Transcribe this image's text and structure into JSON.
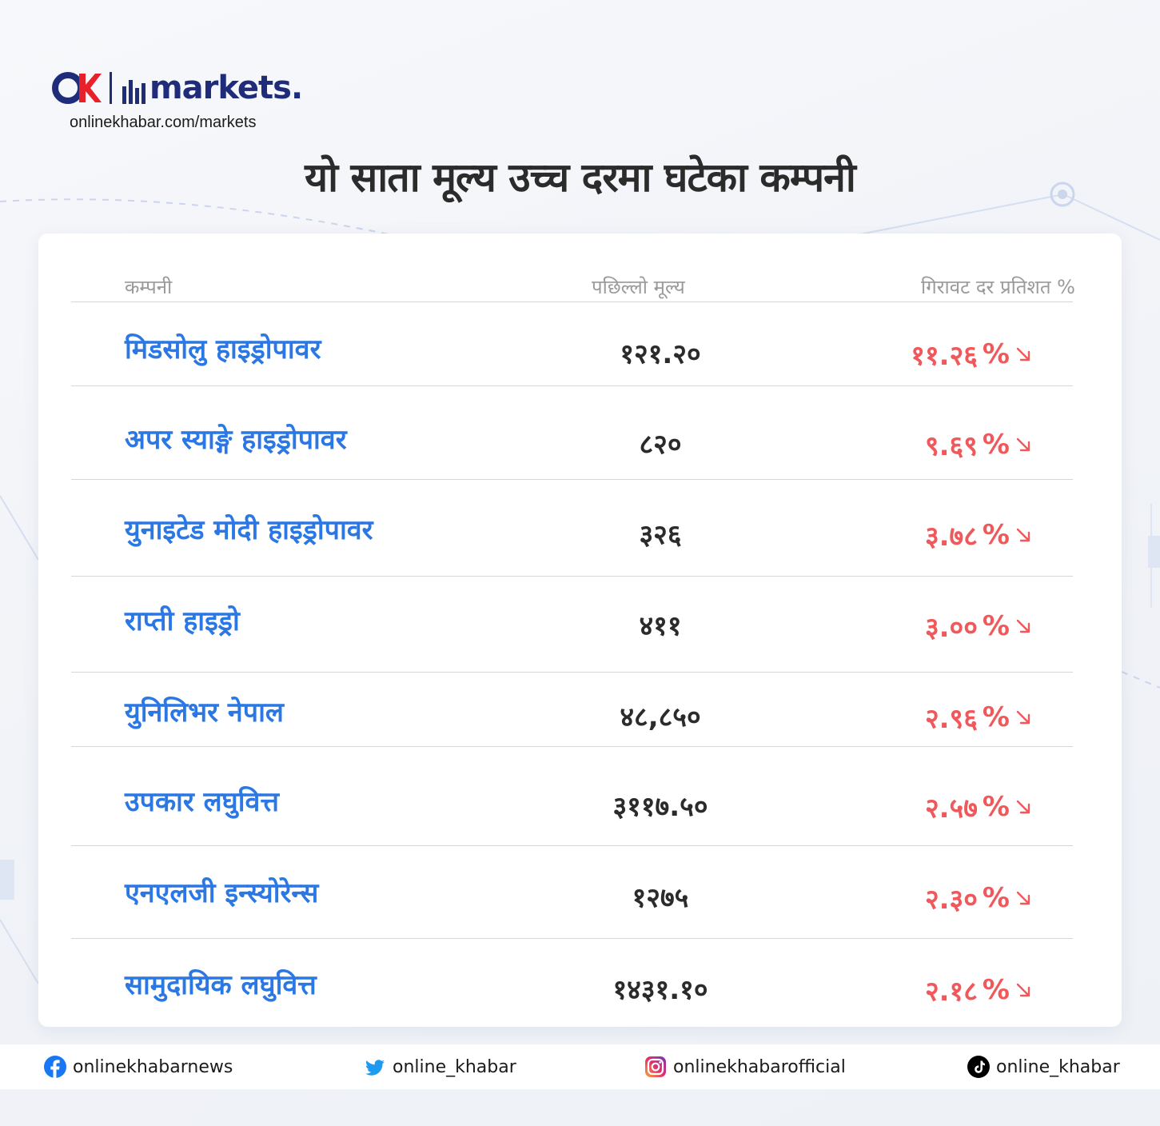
{
  "brand": {
    "logo_text": "markets.",
    "site_url": "onlinekhabar.com/markets"
  },
  "headline": "यो साता मूल्य उच्च दरमा घटेका कम्पनी",
  "table": {
    "headers": {
      "company": "कम्पनी",
      "price": "पछिल्लो मूल्य",
      "rate": "गिरावट दर प्रतिशत %"
    },
    "rows": [
      {
        "name": "मिडसोलु हाइड्रोपावर",
        "price": "१२१.२०",
        "rate": "११.२६",
        "pct": "%"
      },
      {
        "name": "अपर स्याङ्गे हाइड्रोपावर",
        "price": "८२०",
        "rate": "९.६९",
        "pct": "%"
      },
      {
        "name": "युनाइटेड मोदी हाइड्रोपावर",
        "price": "३२६",
        "rate": "३.७८",
        "pct": "%"
      },
      {
        "name": "राप्ती हाइड्रो",
        "price": "४११",
        "rate": "३.००",
        "pct": "%"
      },
      {
        "name": "युनिलिभर नेपाल",
        "price": "४८,८५०",
        "rate": "२.९६",
        "pct": "%"
      },
      {
        "name": "उपकार लघुवित्त",
        "price": "३११७.५०",
        "rate": "२.५७",
        "pct": "%"
      },
      {
        "name": "एनएलजी इन्स्योरेन्स",
        "price": "१२७५",
        "rate": "२.३०",
        "pct": "%"
      },
      {
        "name": "सामुदायिक लघुवित्त",
        "price": "१४३१.१०",
        "rate": "२.१८",
        "pct": "%"
      }
    ]
  },
  "footer": {
    "facebook": "onlinekhabarnews",
    "twitter": "online_khabar",
    "instagram": "onlinekhabarofficial",
    "tiktok": "online_khabar"
  },
  "colors": {
    "brand_navy": "#1f2c7a",
    "brand_red": "#e8202a",
    "company_blue": "#2b78e4",
    "drop_red": "#f0595c"
  }
}
